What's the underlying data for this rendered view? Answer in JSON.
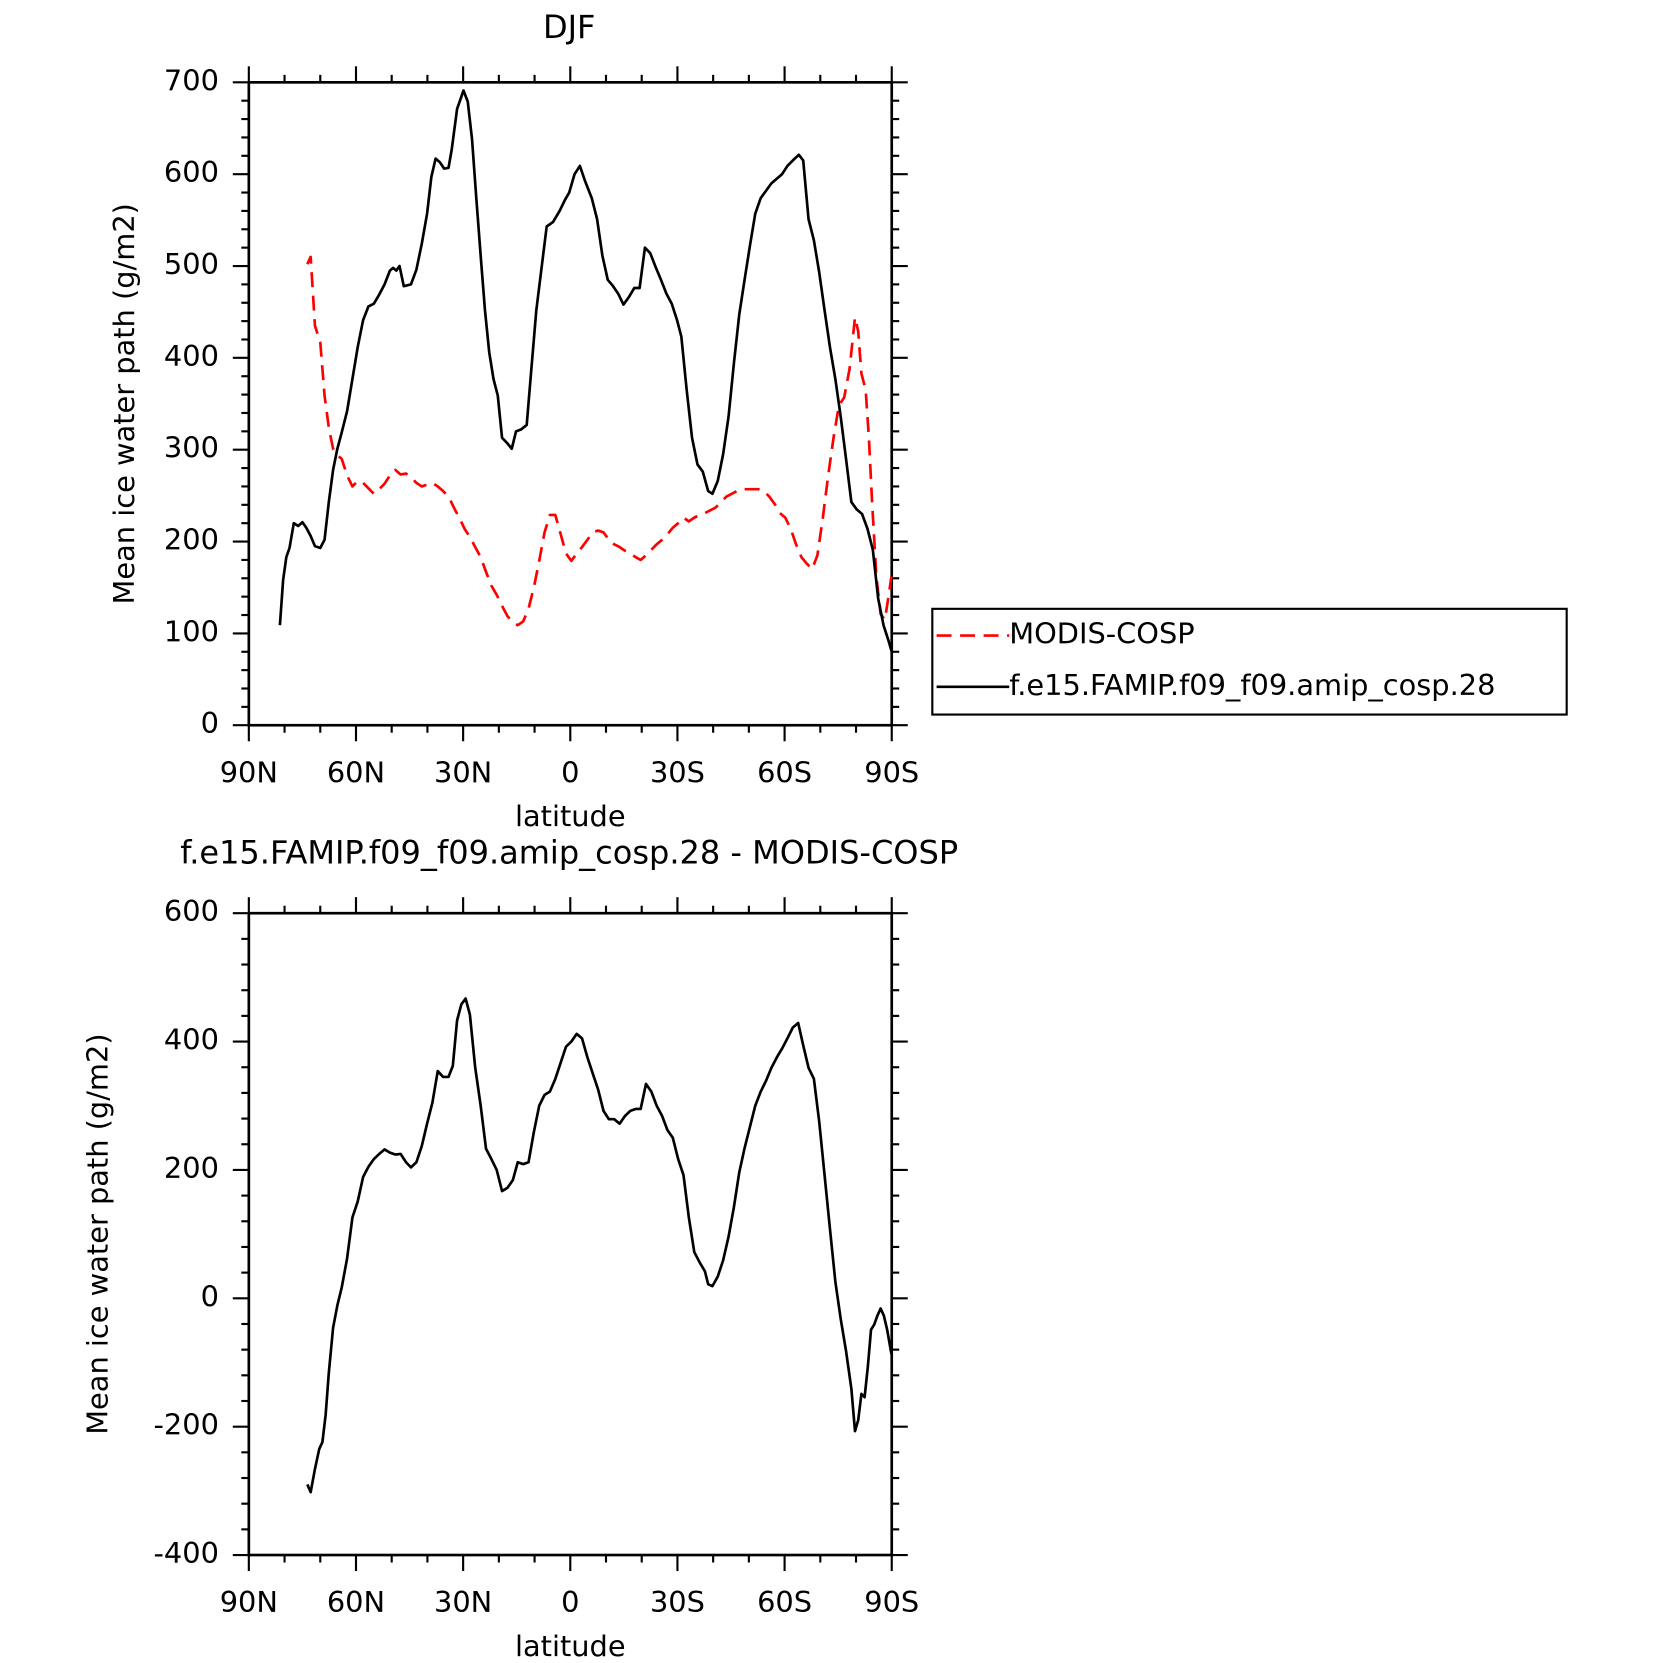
{
  "chart_data": [
    {
      "type": "line",
      "title": "DJF",
      "xlabel": "latitude",
      "ylabel": "Mean ice water path (g/m2)",
      "xlim": [
        90,
        -90
      ],
      "ylim": [
        0,
        700
      ],
      "xticks": [
        {
          "value": 90,
          "label": "90N"
        },
        {
          "value": 60,
          "label": "60N"
        },
        {
          "value": 30,
          "label": "30N"
        },
        0,
        {
          "value": -30,
          "label": "30S"
        },
        {
          "value": -60,
          "label": "60S"
        },
        {
          "value": -90,
          "label": "90S"
        }
      ],
      "yticks": [
        0,
        100,
        200,
        300,
        400,
        500,
        600,
        700
      ],
      "legend": "outside-right",
      "series": [
        {
          "name": "MODIS-COSP",
          "color": "#ff0000",
          "style": "dashed",
          "x": [
            73.6,
            72.7,
            71.5,
            70,
            68.8,
            67.6,
            66.4,
            65.2,
            64,
            62.5,
            61,
            59.5,
            58,
            56.5,
            55,
            53.5,
            52,
            50.5,
            49,
            47.5,
            46,
            44.6,
            43.1,
            41.6,
            40.1,
            38.6,
            37.1,
            35.6,
            34.1,
            32.6,
            31.1,
            29.6,
            28.1,
            26.6,
            25.1,
            23.6,
            22.1,
            20.6,
            19.1,
            17.6,
            16.1,
            14.7,
            13.2,
            11.7,
            10.2,
            8.7,
            7.2,
            5.7,
            4.2,
            2.7,
            1.2,
            -0.3,
            -1.8,
            -3.3,
            -4.8,
            -6.3,
            -7.8,
            -9.3,
            -10.8,
            -12.3,
            -13.8,
            -15.3,
            -16.8,
            -18.3,
            -19.7,
            -21.2,
            -22.7,
            -24.2,
            -25.7,
            -27.2,
            -28.7,
            -30.2,
            -31.7,
            -33.2,
            -34.7,
            -36.2,
            -37.7,
            -39.2,
            -40.7,
            -42.2,
            -43.7,
            -45.2,
            -46.7,
            -48.2,
            -49.7,
            -51.2,
            -52.7,
            -54.2,
            -55.7,
            -57.2,
            -58.7,
            -60.2,
            -61.7,
            -63.2,
            -64.7,
            -66.2,
            -67.7,
            -69.2,
            -70.7,
            -72.2,
            -73.7,
            -75.2,
            -76.7,
            -78.2,
            -79.7,
            -80.6,
            -81.5,
            -82.7,
            -83.6,
            -84.5,
            -85.7,
            -86.9,
            -88.1,
            -89,
            -89.9
          ],
          "values": [
            502,
            510,
            435,
            417,
            359,
            324,
            301,
            294,
            290,
            272,
            260,
            266,
            264,
            258,
            252,
            257,
            263,
            272,
            278,
            273,
            274,
            270,
            264,
            260,
            262,
            264,
            260,
            255,
            249,
            237,
            226,
            214,
            205,
            194,
            183,
            167,
            152,
            142,
            130,
            119,
            112,
            109,
            113,
            127,
            150,
            179,
            210,
            229,
            229,
            208,
            187,
            179,
            187,
            194,
            202,
            210,
            212,
            210,
            202,
            197,
            194,
            190,
            187,
            183,
            180,
            185,
            191,
            197,
            202,
            208,
            215,
            220,
            226,
            222,
            226,
            229,
            231,
            234,
            237,
            243,
            249,
            252,
            255,
            257,
            257,
            257,
            257,
            255,
            249,
            241,
            231,
            226,
            214,
            197,
            183,
            176,
            170,
            185,
            226,
            272,
            313,
            348,
            357,
            388,
            444,
            429,
            383,
            365,
            313,
            243,
            162,
            121,
            115,
            138,
            162
          ]
        },
        {
          "name": "f.e15.FAMIP.f09_f09.amip_cosp.28",
          "color": "#000000",
          "style": "solid",
          "x": [
            81.3,
            80.4,
            79.5,
            78.6,
            77.4,
            76.2,
            75,
            73.9,
            72.7,
            71.5,
            70,
            68.8,
            67.6,
            66.4,
            65.2,
            64,
            62.5,
            61,
            59.5,
            58,
            56.5,
            55,
            53.5,
            52,
            50.5,
            49.6,
            48.7,
            47.8,
            46.6,
            44.6,
            43.1,
            41.6,
            40.1,
            38.9,
            37.7,
            36.5,
            35.3,
            34.1,
            33.2,
            31.7,
            29.9,
            28.7,
            27.5,
            26.3,
            25.1,
            23.9,
            22.7,
            21.5,
            20.3,
            19.1,
            17.6,
            16.4,
            15.2,
            13.8,
            12.2,
            11,
            9.5,
            8,
            6.6,
            4.8,
            3,
            1.5,
            0.3,
            -1.2,
            -2.7,
            -4.2,
            -6,
            -7.5,
            -9,
            -10.5,
            -12,
            -13.4,
            -14.9,
            -16.4,
            -17.9,
            -19.4,
            -20.9,
            -22.4,
            -23.9,
            -25.4,
            -26.9,
            -28.4,
            -29.9,
            -31.1,
            -32.6,
            -34.1,
            -35.6,
            -37.1,
            -38.6,
            -39.8,
            -41.3,
            -42.8,
            -44.3,
            -45.8,
            -47.3,
            -48.8,
            -50.3,
            -51.8,
            -53.3,
            -54.8,
            -56.3,
            -57.8,
            -59.3,
            -60.8,
            -62.3,
            -64,
            -65.2,
            -66.7,
            -68.2,
            -69.7,
            -71.2,
            -72.7,
            -74.2,
            -75.7,
            -77.2,
            -78.7,
            -80.2,
            -81.7,
            -83.2,
            -84.7,
            -86.2,
            -87.7,
            -89.1,
            -90
          ],
          "values": [
            109,
            158,
            183,
            193,
            220,
            217,
            221,
            215,
            206,
            195,
            193,
            202,
            243,
            278,
            301,
            319,
            342,
            377,
            412,
            441,
            456,
            459,
            469,
            480,
            495,
            498,
            495,
            500,
            478,
            480,
            496,
            524,
            557,
            597,
            617,
            613,
            606,
            607,
            627,
            671,
            691,
            679,
            638,
            574,
            511,
            452,
            406,
            377,
            359,
            313,
            307,
            301,
            320,
            322,
            327,
            383,
            452,
            499,
            543,
            548,
            560,
            572,
            580,
            600,
            609,
            592,
            574,
            551,
            511,
            485,
            478,
            470,
            458,
            466,
            476,
            476,
            520,
            514,
            499,
            485,
            470,
            459,
            441,
            423,
            365,
            313,
            284,
            276,
            255,
            252,
            266,
            295,
            336,
            394,
            447,
            485,
            522,
            557,
            574,
            582,
            590,
            595,
            600,
            609,
            615,
            621,
            615,
            551,
            528,
            493,
            452,
            412,
            377,
            336,
            290,
            243,
            235,
            230,
            214,
            191,
            138,
            109,
            92,
            80
          ]
        }
      ]
    },
    {
      "type": "line",
      "title": "f.e15.FAMIP.f09_f09.amip_cosp.28 - MODIS-COSP",
      "xlabel": "latitude",
      "ylabel": "Mean ice water path (g/m2)",
      "xlim": [
        90,
        -90
      ],
      "ylim": [
        -400,
        600
      ],
      "xticks": [
        {
          "value": 90,
          "label": "90N"
        },
        {
          "value": 60,
          "label": "60N"
        },
        {
          "value": 30,
          "label": "30N"
        },
        0,
        {
          "value": -30,
          "label": "30S"
        },
        {
          "value": -60,
          "label": "60S"
        },
        {
          "value": -90,
          "label": "90S"
        }
      ],
      "yticks": [
        -400,
        -200,
        0,
        200,
        400,
        600
      ],
      "series": [
        {
          "color": "#000000",
          "style": "solid",
          "x": [
            73.6,
            72.7,
            71.5,
            70.3,
            69.4,
            68.5,
            67.6,
            66.4,
            65.2,
            64,
            62.5,
            61,
            59.5,
            58,
            56.5,
            55,
            53.5,
            52,
            50.5,
            49,
            47.5,
            46,
            44.6,
            43.1,
            41.6,
            40.1,
            38.6,
            37.1,
            35.6,
            34.1,
            32.9,
            31.7,
            30.5,
            29.3,
            28.1,
            26.6,
            25.1,
            23.6,
            22.1,
            20.6,
            19.1,
            17.6,
            16.1,
            14.7,
            13.2,
            11.7,
            10.2,
            8.7,
            7.2,
            5.7,
            4.2,
            2.7,
            1.2,
            -0.3,
            -1.8,
            -3.3,
            -4.8,
            -6.3,
            -7.8,
            -9.3,
            -10.8,
            -12.3,
            -13.8,
            -15.3,
            -16.8,
            -18.3,
            -19.7,
            -21.2,
            -22.7,
            -24.2,
            -25.7,
            -27.2,
            -28.7,
            -30.2,
            -31.7,
            -33.2,
            -34.7,
            -36.2,
            -37.7,
            -38.6,
            -39.8,
            -41.3,
            -42.8,
            -44.3,
            -45.8,
            -47.3,
            -48.8,
            -50.3,
            -51.8,
            -53.3,
            -54.8,
            -56.3,
            -57.8,
            -59.3,
            -60.8,
            -62.3,
            -63.8,
            -65.3,
            -66.7,
            -68.2,
            -69.7,
            -71.2,
            -72.7,
            -74.2,
            -75.7,
            -77.2,
            -78.7,
            -79.7,
            -80.6,
            -81.5,
            -82.4,
            -83.3,
            -84.2,
            -85.1,
            -86,
            -86.9,
            -87.8,
            -88.7,
            -89.9
          ],
          "values": [
            -290,
            -302,
            -266,
            -235,
            -224,
            -182,
            -116,
            -46,
            -11,
            17,
            62,
            126,
            151,
            189,
            205,
            217,
            225,
            232,
            227,
            224,
            225,
            212,
            204,
            212,
            237,
            272,
            305,
            354,
            345,
            345,
            362,
            433,
            458,
            467,
            442,
            359,
            300,
            233,
            217,
            200,
            167,
            172,
            184,
            212,
            209,
            212,
            259,
            300,
            317,
            322,
            342,
            367,
            392,
            400,
            412,
            405,
            375,
            350,
            325,
            292,
            279,
            279,
            272,
            284,
            292,
            295,
            295,
            334,
            322,
            300,
            284,
            262,
            250,
            217,
            192,
            126,
            72,
            56,
            42,
            22,
            19,
            34,
            59,
            96,
            142,
            196,
            234,
            267,
            300,
            322,
            339,
            359,
            375,
            389,
            405,
            422,
            429,
            392,
            359,
            342,
            275,
            192,
            109,
            26,
            -32,
            -82,
            -141,
            -207,
            -190,
            -149,
            -154,
            -107,
            -49,
            -41,
            -27,
            -16,
            -27,
            -49,
            -87
          ]
        }
      ]
    }
  ]
}
